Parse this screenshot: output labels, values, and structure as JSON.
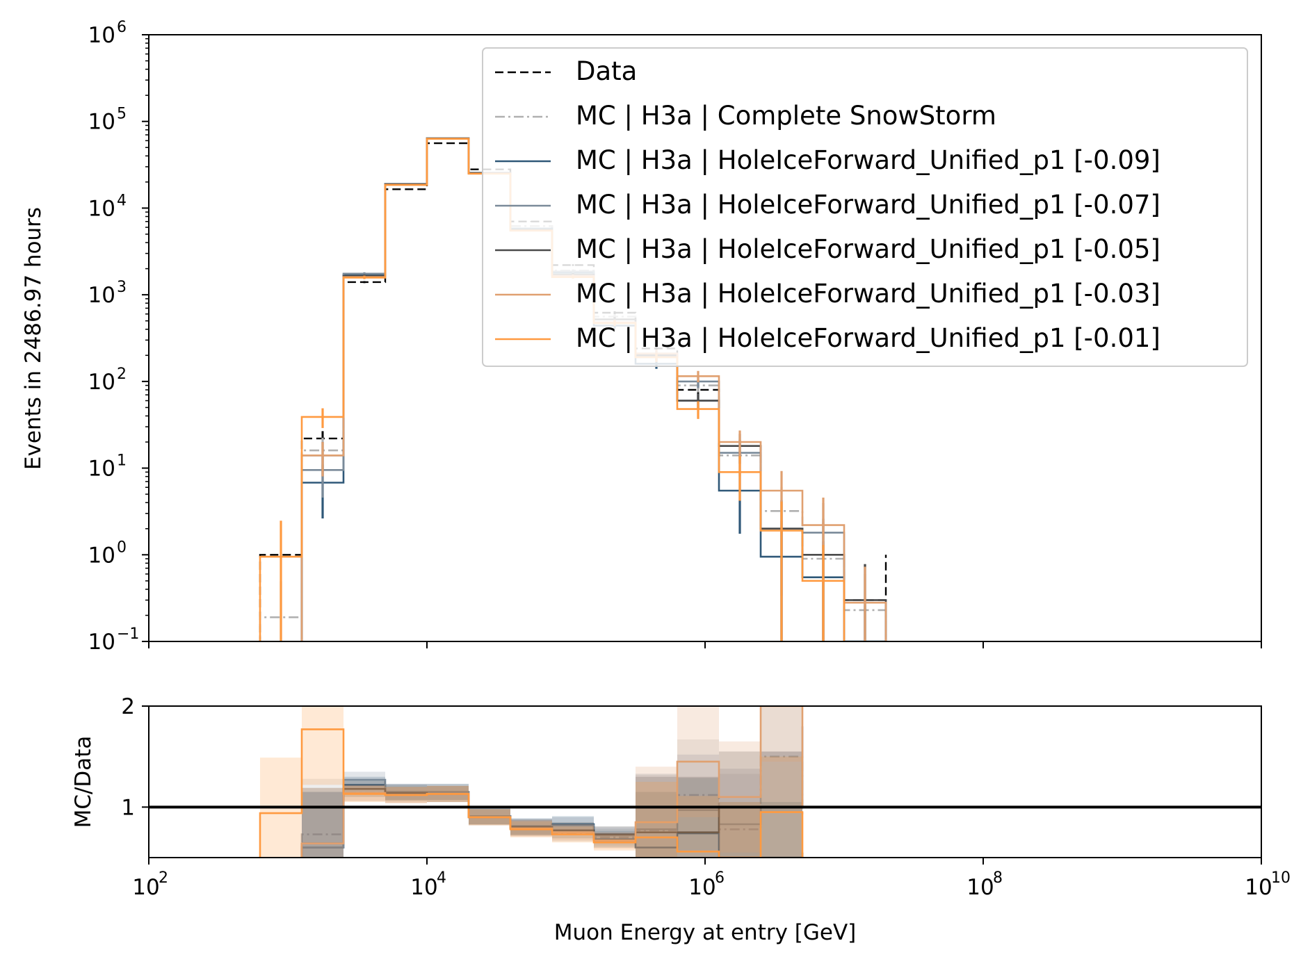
{
  "chart_data": [
    {
      "type": "histogram-step",
      "title": "",
      "xlabel": "",
      "ylabel": "Events in 2486.97 hours",
      "xscale": "log",
      "yscale": "log",
      "xlim": [
        100,
        10000000000
      ],
      "ylim": [
        0.1,
        1000000
      ],
      "x_ticks": [
        "10^2",
        "10^4",
        "10^6",
        "10^8",
        "10^10"
      ],
      "y_ticks": [
        {
          "base": "10",
          "exp": "−1",
          "value": 0.1
        },
        {
          "base": "10",
          "exp": "0",
          "value": 1
        },
        {
          "base": "10",
          "exp": "1",
          "value": 10
        },
        {
          "base": "10",
          "exp": "2",
          "value": 100
        },
        {
          "base": "10",
          "exp": "3",
          "value": 1000
        },
        {
          "base": "10",
          "exp": "4",
          "value": 10000
        },
        {
          "base": "10",
          "exp": "5",
          "value": 100000
        },
        {
          "base": "10",
          "exp": "6",
          "value": 1000000
        }
      ],
      "legend_position": "top-right",
      "bin_edges": [
        631,
        1259,
        2512,
        5012,
        10000,
        19953,
        39811,
        79433,
        158489,
        316228,
        630957,
        1258925,
        2511886,
        5011872,
        10000000,
        19952623
      ],
      "series": [
        {
          "name": "Data",
          "color": "#000000",
          "style": "dashed",
          "values": [
            1,
            22,
            1400,
            16500,
            56000,
            28000,
            7000,
            2200,
            620,
            240,
            80,
            18,
            2,
            1,
            0.3,
            1
          ]
        },
        {
          "name": "MC | H3a | Complete SnowStorm",
          "color": "#b0b0b0",
          "style": "dashdot",
          "values": [
            0.19,
            16,
            1600,
            18500,
            63000,
            25500,
            6200,
            1900,
            560,
            200,
            90,
            14,
            3.2,
            0.9,
            0.23,
            null
          ]
        },
        {
          "name": "MC | H3a | HoleIceForward_Unified_p1 [-0.09]",
          "color": "#2f5878",
          "style": "solid",
          "values": [
            null,
            6.8,
            1700,
            19000,
            64000,
            25500,
            5800,
            1800,
            440,
            160,
            60,
            5.5,
            0.95,
            0.55,
            0.1,
            null
          ]
        },
        {
          "name": "MC | H3a | HoleIceForward_Unified_p1 [-0.07]",
          "color": "#7a8a99",
          "style": "solid",
          "values": [
            null,
            9.5,
            1750,
            19000,
            64000,
            25500,
            5700,
            1850,
            480,
            190,
            100,
            15,
            2,
            1.8,
            0.3,
            null
          ]
        },
        {
          "name": "MC | H3a | HoleIceForward_Unified_p1 [-0.05]",
          "color": "#4a4a4a",
          "style": "solid",
          "values": [
            null,
            14,
            1650,
            18800,
            63500,
            25300,
            5600,
            1700,
            520,
            200,
            60,
            18,
            2,
            1,
            0.3,
            null
          ]
        },
        {
          "name": "MC | H3a | HoleIceForward_Unified_p1 [-0.03]",
          "color": "#e0a070",
          "style": "solid",
          "values": [
            null,
            14,
            1600,
            18500,
            63000,
            25000,
            5500,
            1650,
            480,
            210,
            115,
            20,
            5.5,
            2.2,
            0.28,
            null
          ]
        },
        {
          "name": "MC | H3a | HoleIceForward_Unified_p1 [-0.01]",
          "color": "#ff9a40",
          "style": "solid",
          "values": [
            0.95,
            39,
            1580,
            18500,
            63000,
            25000,
            5500,
            1600,
            470,
            190,
            48,
            9,
            1.9,
            0.5,
            null,
            null
          ]
        }
      ]
    },
    {
      "type": "ratio-step",
      "title": "",
      "xlabel": "Muon Energy at entry [GeV]",
      "ylabel": "MC/Data",
      "xscale": "log",
      "yscale": "linear",
      "xlim": [
        100,
        10000000000
      ],
      "ylim": [
        0.5,
        2
      ],
      "x_ticks": [
        {
          "base": "10",
          "exp": "2"
        },
        {
          "base": "10",
          "exp": "4"
        },
        {
          "base": "10",
          "exp": "6"
        },
        {
          "base": "10",
          "exp": "8"
        },
        {
          "base": "10",
          "exp": "10"
        }
      ],
      "y_ticks": [
        "1",
        "2"
      ],
      "reference_line": 1,
      "bin_edges": [
        631,
        1259,
        2512,
        5012,
        10000,
        19953,
        39811,
        79433,
        158489,
        316228,
        630957,
        1258925,
        2511886,
        5011872
      ],
      "series": [
        {
          "name": "MC | H3a | Complete SnowStorm",
          "color": "#b0b0b0",
          "values": [
            null,
            0.73,
            1.14,
            1.12,
            1.13,
            0.91,
            0.79,
            0.74,
            0.7,
            0.77,
            1.12,
            0.78,
            1.5,
            0.9
          ]
        },
        {
          "name": "MC | H3a | HoleIceForward_Unified_p1 [-0.09]",
          "color": "#2f5878",
          "values": [
            null,
            0.6,
            1.22,
            1.15,
            1.15,
            0.91,
            0.81,
            0.83,
            0.68,
            0.6,
            0.74,
            0.5,
            0.5,
            0.55
          ]
        },
        {
          "name": "MC | H3a | HoleIceForward_Unified_p1 [-0.07]",
          "color": "#7a8a99",
          "values": [
            null,
            0.6,
            1.27,
            1.15,
            1.15,
            0.91,
            0.8,
            0.82,
            0.72,
            0.78,
            0.97,
            0.83,
            1.0,
            1.8
          ]
        },
        {
          "name": "MC | H3a | HoleIceForward_Unified_p1 [-0.05]",
          "color": "#4a4a4a",
          "values": [
            null,
            0.64,
            1.18,
            1.14,
            1.13,
            0.9,
            0.8,
            0.77,
            0.73,
            0.75,
            0.75,
            1.0,
            1.0,
            1.0
          ]
        },
        {
          "name": "MC | H3a | HoleIceForward_Unified_p1 [-0.03]",
          "color": "#e0a070",
          "values": [
            null,
            0.64,
            1.14,
            1.12,
            1.13,
            0.9,
            0.79,
            0.75,
            0.67,
            0.85,
            1.45,
            1.1,
            2.0,
            1.0
          ]
        },
        {
          "name": "MC | H3a | HoleIceForward_Unified_p1 [-0.01]",
          "color": "#ff9a40",
          "values": [
            0.94,
            1.77,
            1.13,
            1.12,
            1.13,
            0.9,
            0.78,
            0.73,
            0.65,
            0.7,
            0.56,
            0.5,
            0.95,
            0.5
          ]
        }
      ]
    }
  ]
}
